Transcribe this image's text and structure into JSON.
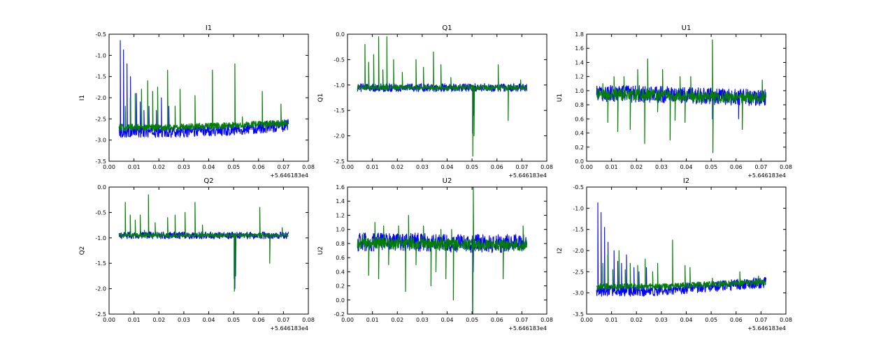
{
  "figure": {
    "background": "#ffffff",
    "series_colors": [
      "#0000ff",
      "#008000"
    ]
  },
  "chart_data": [
    {
      "type": "line",
      "title": "I1",
      "ylabel": "I1",
      "xlim": [
        0.0,
        0.08
      ],
      "ylim": [
        -3.5,
        -0.5
      ],
      "x_ticks": [
        "0.00",
        "0.01",
        "0.02",
        "0.03",
        "0.04",
        "0.05",
        "0.06",
        "0.07",
        "0.08"
      ],
      "y_ticks": [
        "-3.5",
        "-3.0",
        "-2.5",
        "-2.0",
        "-1.5",
        "-1.0",
        "-0.5"
      ],
      "x_offset": "+5.646183e4",
      "series": [
        {
          "color": "#0000ff",
          "x_range": [
            0.004,
            0.072
          ],
          "baseline": [
            -2.8,
            -2.8,
            -2.75,
            -2.65
          ],
          "noise": 0.14,
          "spikes": [
            [
              0.0045,
              -0.65
            ],
            [
              0.0058,
              -0.87
            ],
            [
              0.0072,
              -1.2
            ],
            [
              0.0086,
              -1.5
            ],
            [
              0.011,
              -1.9
            ],
            [
              0.0125,
              -2.1
            ],
            [
              0.014,
              -2.3
            ],
            [
              0.016,
              -2.2
            ],
            [
              0.019,
              -2.3
            ],
            [
              0.021,
              -2.0
            ],
            [
              0.024,
              -2.2
            ]
          ]
        },
        {
          "color": "#008000",
          "x_range": [
            0.004,
            0.072
          ],
          "baseline": [
            -2.7,
            -2.7,
            -2.65,
            -2.6
          ],
          "noise": 0.08,
          "spikes": [
            [
              0.0065,
              -2.2
            ],
            [
              0.0085,
              -2.0
            ],
            [
              0.0105,
              -1.9
            ],
            [
              0.013,
              -1.8
            ],
            [
              0.0155,
              -1.6
            ],
            [
              0.0175,
              -1.85
            ],
            [
              0.0195,
              -1.75
            ],
            [
              0.0235,
              -1.35
            ],
            [
              0.0265,
              -2.2
            ],
            [
              0.0285,
              -1.8
            ],
            [
              0.0345,
              -1.95
            ],
            [
              0.0415,
              -1.35
            ],
            [
              0.0505,
              -1.2
            ],
            [
              0.0535,
              -2.45
            ],
            [
              0.0615,
              -1.85
            ],
            [
              0.069,
              -2.15
            ]
          ]
        }
      ]
    },
    {
      "type": "line",
      "title": "Q1",
      "ylabel": "Q1",
      "xlim": [
        0.0,
        0.08
      ],
      "ylim": [
        -2.5,
        0.0
      ],
      "x_ticks": [
        "0.00",
        "0.01",
        "0.02",
        "0.03",
        "0.04",
        "0.05",
        "0.06",
        "0.07",
        "0.08"
      ],
      "y_ticks": [
        "-2.5",
        "-2.0",
        "-1.5",
        "-1.0",
        "-0.5",
        "0.0"
      ],
      "x_offset": "+5.646183e4",
      "series": [
        {
          "color": "#0000ff",
          "x_range": [
            0.004,
            0.072
          ],
          "baseline": [
            -1.05,
            -1.05,
            -1.05,
            -1.05
          ],
          "noise": 0.08,
          "spikes": [
            [
              0.0502,
              -1.95
            ],
            [
              0.0507,
              -1.6
            ]
          ]
        },
        {
          "color": "#008000",
          "x_range": [
            0.004,
            0.072
          ],
          "baseline": [
            -1.05,
            -1.05,
            -1.05,
            -1.05
          ],
          "noise": 0.05,
          "spikes": [
            [
              0.007,
              -0.2
            ],
            [
              0.0085,
              -0.55
            ],
            [
              0.0105,
              -0.4
            ],
            [
              0.0125,
              -0.05
            ],
            [
              0.0142,
              -0.7
            ],
            [
              0.0158,
              -0.05
            ],
            [
              0.0185,
              -0.5
            ],
            [
              0.022,
              -0.75
            ],
            [
              0.0275,
              -0.5
            ],
            [
              0.0305,
              -0.65
            ],
            [
              0.0345,
              -0.35
            ],
            [
              0.0375,
              -0.6
            ],
            [
              0.0415,
              -0.85
            ],
            [
              0.0503,
              -2.4
            ],
            [
              0.0508,
              -2.0
            ],
            [
              0.0605,
              -0.6
            ],
            [
              0.0645,
              -1.7
            ],
            [
              0.0695,
              -0.9
            ]
          ]
        }
      ]
    },
    {
      "type": "line",
      "title": "U1",
      "ylabel": "U1",
      "xlim": [
        0.0,
        0.08
      ],
      "ylim": [
        0.0,
        1.8
      ],
      "x_ticks": [
        "0.00",
        "0.01",
        "0.02",
        "0.03",
        "0.04",
        "0.05",
        "0.06",
        "0.07",
        "0.08"
      ],
      "y_ticks": [
        "0.0",
        "0.2",
        "0.4",
        "0.6",
        "0.8",
        "1.0",
        "1.2",
        "1.4",
        "1.6",
        "1.8"
      ],
      "x_offset": "+5.646183e4",
      "series": [
        {
          "color": "#0000ff",
          "x_range": [
            0.004,
            0.072
          ],
          "baseline": [
            0.96,
            0.95,
            0.92,
            0.9
          ],
          "noise": 0.12,
          "spikes": [
            [
              0.0505,
              0.6
            ],
            [
              0.061,
              0.6
            ]
          ]
        },
        {
          "color": "#008000",
          "x_range": [
            0.004,
            0.072
          ],
          "baseline": [
            0.95,
            0.94,
            0.91,
            0.9
          ],
          "noise": 0.08,
          "spikes": [
            [
              0.0065,
              1.1
            ],
            [
              0.0085,
              0.55
            ],
            [
              0.011,
              1.2
            ],
            [
              0.0125,
              0.42
            ],
            [
              0.015,
              1.2
            ],
            [
              0.0175,
              0.45
            ],
            [
              0.0205,
              1.3
            ],
            [
              0.0233,
              0.25
            ],
            [
              0.0245,
              1.45
            ],
            [
              0.0285,
              0.7
            ],
            [
              0.0305,
              1.3
            ],
            [
              0.0335,
              0.3
            ],
            [
              0.0355,
              0.58
            ],
            [
              0.0375,
              1.2
            ],
            [
              0.0395,
              0.55
            ],
            [
              0.0418,
              1.2
            ],
            [
              0.0505,
              1.72
            ],
            [
              0.0507,
              0.12
            ],
            [
              0.0625,
              0.45
            ],
            [
              0.0705,
              1.15
            ]
          ]
        }
      ]
    },
    {
      "type": "line",
      "title": "Q2",
      "ylabel": "Q2",
      "xlim": [
        0.0,
        0.08
      ],
      "ylim": [
        -2.5,
        0.0
      ],
      "x_ticks": [
        "0.00",
        "0.01",
        "0.02",
        "0.03",
        "0.04",
        "0.05",
        "0.06",
        "0.07",
        "0.08"
      ],
      "y_ticks": [
        "-2.5",
        "-2.0",
        "-1.5",
        "-1.0",
        "-0.5",
        "0.0"
      ],
      "x_offset": "+5.646183e4",
      "series": [
        {
          "color": "#0000ff",
          "x_range": [
            0.004,
            0.072
          ],
          "baseline": [
            -0.95,
            -0.95,
            -0.95,
            -0.95
          ],
          "noise": 0.07,
          "spikes": [
            [
              0.0502,
              -1.8
            ],
            [
              0.0505,
              -2.0
            ]
          ]
        },
        {
          "color": "#008000",
          "x_range": [
            0.004,
            0.072
          ],
          "baseline": [
            -0.95,
            -0.95,
            -0.95,
            -0.95
          ],
          "noise": 0.04,
          "spikes": [
            [
              0.0065,
              -0.3
            ],
            [
              0.0085,
              -0.55
            ],
            [
              0.0105,
              -0.65
            ],
            [
              0.0125,
              -0.55
            ],
            [
              0.0142,
              -0.85
            ],
            [
              0.0158,
              -0.15
            ],
            [
              0.0185,
              -0.7
            ],
            [
              0.0235,
              -0.6
            ],
            [
              0.0265,
              -0.55
            ],
            [
              0.0305,
              -0.5
            ],
            [
              0.0345,
              -0.3
            ],
            [
              0.0375,
              -0.75
            ],
            [
              0.0415,
              -0.9
            ],
            [
              0.0503,
              -2.05
            ],
            [
              0.0508,
              -1.75
            ],
            [
              0.0605,
              -0.4
            ],
            [
              0.0645,
              -1.5
            ],
            [
              0.0695,
              -0.8
            ]
          ]
        }
      ]
    },
    {
      "type": "line",
      "title": "U2",
      "ylabel": "U2",
      "xlim": [
        0.0,
        0.08
      ],
      "ylim": [
        -0.2,
        1.6
      ],
      "x_ticks": [
        "0.00",
        "0.01",
        "0.02",
        "0.03",
        "0.04",
        "0.05",
        "0.06",
        "0.07",
        "0.08"
      ],
      "y_ticks": [
        "-0.2",
        "0.0",
        "0.2",
        "0.4",
        "0.6",
        "0.8",
        "1.0",
        "1.2",
        "1.4",
        "1.6"
      ],
      "x_offset": "+5.646183e4",
      "series": [
        {
          "color": "#0000ff",
          "x_range": [
            0.004,
            0.072
          ],
          "baseline": [
            0.82,
            0.82,
            0.8,
            0.8
          ],
          "noise": 0.13,
          "spikes": [
            [
              0.0505,
              0.4
            ],
            [
              0.0502,
              -0.15
            ]
          ]
        },
        {
          "color": "#008000",
          "x_range": [
            0.004,
            0.072
          ],
          "baseline": [
            0.8,
            0.8,
            0.78,
            0.78
          ],
          "noise": 0.08,
          "spikes": [
            [
              0.0065,
              0.95
            ],
            [
              0.0085,
              0.35
            ],
            [
              0.011,
              1.1
            ],
            [
              0.0125,
              0.3
            ],
            [
              0.0145,
              1.05
            ],
            [
              0.0165,
              0.5
            ],
            [
              0.0205,
              1.05
            ],
            [
              0.0233,
              0.12
            ],
            [
              0.0245,
              1.2
            ],
            [
              0.0275,
              0.5
            ],
            [
              0.0305,
              1.05
            ],
            [
              0.0335,
              0.2
            ],
            [
              0.0355,
              0.4
            ],
            [
              0.0375,
              1.0
            ],
            [
              0.0395,
              0.3
            ],
            [
              0.0418,
              1.0
            ],
            [
              0.0425,
              0.0
            ],
            [
              0.0505,
              1.62
            ],
            [
              0.0503,
              -0.2
            ],
            [
              0.0625,
              0.3
            ],
            [
              0.0705,
              1.05
            ]
          ]
        }
      ]
    },
    {
      "type": "line",
      "title": "I2",
      "ylabel": "I2",
      "xlim": [
        0.0,
        0.08
      ],
      "ylim": [
        -3.5,
        -0.5
      ],
      "x_ticks": [
        "0.00",
        "0.01",
        "0.02",
        "0.03",
        "0.04",
        "0.05",
        "0.06",
        "0.07",
        "0.08"
      ],
      "y_ticks": [
        "-3.5",
        "-3.0",
        "-2.5",
        "-2.0",
        "-1.5",
        "-1.0",
        "-0.5"
      ],
      "x_offset": "+5.646183e4",
      "series": [
        {
          "color": "#0000ff",
          "x_range": [
            0.004,
            0.072
          ],
          "baseline": [
            -2.95,
            -2.95,
            -2.85,
            -2.75
          ],
          "noise": 0.13,
          "spikes": [
            [
              0.0045,
              -0.87
            ],
            [
              0.0058,
              -1.1
            ],
            [
              0.0072,
              -1.45
            ],
            [
              0.0086,
              -1.8
            ],
            [
              0.011,
              -2.0
            ],
            [
              0.0125,
              -2.25
            ],
            [
              0.014,
              -2.3
            ],
            [
              0.016,
              -2.1
            ],
            [
              0.019,
              -2.4
            ],
            [
              0.021,
              -2.5
            ],
            [
              0.024,
              -2.4
            ]
          ]
        },
        {
          "color": "#008000",
          "x_range": [
            0.004,
            0.072
          ],
          "baseline": [
            -2.85,
            -2.85,
            -2.8,
            -2.75
          ],
          "noise": 0.07,
          "spikes": [
            [
              0.0065,
              -2.3
            ],
            [
              0.0085,
              -2.1
            ],
            [
              0.0105,
              -2.45
            ],
            [
              0.013,
              -2.0
            ],
            [
              0.0155,
              -2.45
            ],
            [
              0.0175,
              -2.3
            ],
            [
              0.0205,
              -2.35
            ],
            [
              0.0235,
              -2.2
            ],
            [
              0.0265,
              -2.5
            ],
            [
              0.0285,
              -2.3
            ],
            [
              0.0345,
              -1.75
            ],
            [
              0.0395,
              -2.35
            ],
            [
              0.0415,
              -2.4
            ],
            [
              0.0505,
              -2.65
            ],
            [
              0.0615,
              -2.5
            ],
            [
              0.069,
              -2.6
            ]
          ]
        }
      ]
    }
  ]
}
